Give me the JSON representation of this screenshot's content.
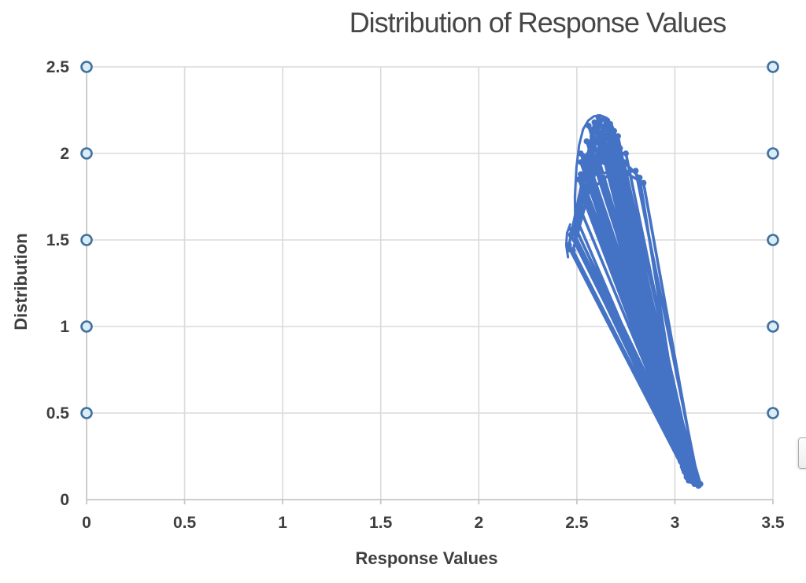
{
  "page": {
    "background": "#ffffff"
  },
  "chart_data": {
    "type": "line",
    "title": "Distribution of Response Values",
    "xlabel": "Response Values",
    "ylabel": "Distribution",
    "xlim": [
      0,
      3.5
    ],
    "ylim": [
      0,
      2.5
    ],
    "x_tick_values": [
      0,
      0.5,
      1,
      1.5,
      2,
      2.5,
      3,
      3.5
    ],
    "x_tick_labels": [
      "0",
      "0.5",
      "1",
      "1.5",
      "2",
      "2.5",
      "3",
      "3.5"
    ],
    "y_tick_values": [
      0,
      0.5,
      1,
      1.5,
      2,
      2.5
    ],
    "y_tick_labels": [
      "0",
      "0.5",
      "1",
      "1.5",
      "2",
      "2.5"
    ],
    "grid": true,
    "legend": false,
    "colors": {
      "series": "#4472c4",
      "edge_marker_stroke": "#41719c",
      "edge_marker_fill": "#d9ecf7",
      "gridline": "#dadada",
      "axis_line": "#c6c6c6",
      "text": "#3f3f3f"
    },
    "style": {
      "line_width": 3.6,
      "arc_width": 3,
      "marker_radius": 3.8,
      "edge_marker_radius": 6.5,
      "edge_marker_stroke_width": 2.6
    },
    "series": [
      {
        "name": "Distribution",
        "points": [
          [
            2.46,
            1.47
          ],
          [
            2.59,
            2.18
          ],
          [
            2.64,
            2.2
          ],
          [
            3.05,
            0.17
          ],
          [
            2.52,
            1.95
          ],
          [
            2.67,
            2.17
          ],
          [
            3.1,
            0.1
          ],
          [
            2.47,
            1.53
          ],
          [
            2.61,
            2.21
          ],
          [
            3.12,
            0.08
          ],
          [
            2.55,
            2.07
          ],
          [
            2.72,
            2.03
          ],
          [
            3.07,
            0.13
          ],
          [
            2.48,
            1.44
          ],
          [
            2.63,
            2.06
          ],
          [
            3.13,
            0.09
          ],
          [
            2.57,
            1.82
          ],
          [
            2.69,
            2.13
          ],
          [
            3.04,
            0.19
          ],
          [
            2.5,
            1.62
          ],
          [
            2.655,
            2.19
          ],
          [
            3.08,
            0.11
          ],
          [
            2.53,
            1.75
          ],
          [
            2.74,
            1.95
          ],
          [
            3.11,
            0.095
          ],
          [
            2.56,
            2.16
          ],
          [
            2.82,
            1.86
          ],
          [
            3.06,
            0.15
          ],
          [
            2.49,
            1.5
          ],
          [
            2.62,
            2.19
          ],
          [
            3.125,
            0.085
          ],
          [
            2.54,
            1.98
          ],
          [
            2.7,
            2.08
          ],
          [
            3.09,
            0.105
          ],
          [
            2.465,
            1.445
          ],
          [
            3.06,
            0.14
          ],
          [
            2.6,
            2.14
          ],
          [
            3.03,
            0.22
          ],
          [
            2.51,
            1.85
          ],
          [
            2.66,
            2.02
          ],
          [
            2.98,
            0.35
          ],
          [
            2.58,
            2.1
          ],
          [
            2.73,
            1.85
          ],
          [
            3.115,
            0.09
          ],
          [
            2.475,
            1.56
          ],
          [
            3.09,
            0.11
          ],
          [
            2.645,
            2.16
          ],
          [
            3.1,
            0.12
          ],
          [
            2.52,
            2.0
          ],
          [
            2.68,
            1.92
          ],
          [
            3.05,
            0.16
          ],
          [
            2.55,
            1.88
          ],
          [
            2.8,
            1.9
          ],
          [
            3.12,
            0.1
          ],
          [
            2.5,
            1.55
          ],
          [
            3.11,
            0.095
          ],
          [
            2.62,
            2.12
          ],
          [
            3.07,
            0.14
          ],
          [
            2.49,
            1.58
          ],
          [
            2.65,
            2.18
          ],
          [
            3.095,
            0.105
          ],
          [
            2.54,
            1.92
          ],
          [
            2.71,
            2.1
          ],
          [
            3.06,
            0.13
          ],
          [
            2.58,
            2.02
          ],
          [
            2.75,
            2.0
          ],
          [
            3.1,
            0.09
          ],
          [
            2.51,
            1.7
          ],
          [
            2.64,
            2.08
          ],
          [
            3.12,
            0.085
          ],
          [
            2.56,
            1.95
          ],
          [
            2.69,
            2.05
          ],
          [
            3.045,
            0.175
          ],
          [
            2.53,
            1.82
          ],
          [
            2.67,
            2.12
          ],
          [
            3.08,
            0.12
          ],
          [
            2.6,
            1.98
          ],
          [
            2.84,
            1.83
          ],
          [
            3.115,
            0.095
          ],
          [
            2.55,
            1.78
          ],
          [
            2.66,
            2.15
          ],
          [
            3.07,
            0.11
          ],
          [
            2.52,
            1.88
          ]
        ],
        "smooth_arcs": [
          [
            [
              2.492,
              1.58
            ],
            [
              2.49,
              1.75
            ],
            [
              2.498,
              1.92
            ],
            [
              2.512,
              2.05
            ],
            [
              2.532,
              2.14
            ],
            [
              2.558,
              2.19
            ],
            [
              2.588,
              2.215
            ],
            [
              2.62,
              2.22
            ],
            [
              2.652,
              2.205
            ],
            [
              2.68,
              2.16
            ],
            [
              2.7,
              2.1
            ]
          ],
          [
            [
              2.455,
              1.4
            ],
            [
              2.446,
              1.47
            ],
            [
              2.45,
              1.54
            ],
            [
              2.466,
              1.59
            ]
          ]
        ]
      }
    ],
    "edge_markers": [
      [
        0,
        0.5
      ],
      [
        0,
        1
      ],
      [
        0,
        1.5
      ],
      [
        0,
        2
      ],
      [
        0,
        2.5
      ],
      [
        3.5,
        0.5
      ],
      [
        3.5,
        1
      ],
      [
        3.5,
        1.5
      ],
      [
        3.5,
        2
      ],
      [
        3.5,
        2.5
      ]
    ]
  }
}
